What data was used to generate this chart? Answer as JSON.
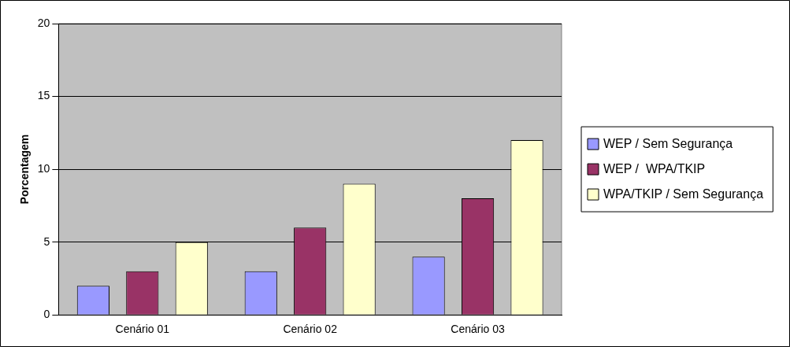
{
  "chart_data": {
    "type": "bar",
    "ylabel": "Porcentagem",
    "categories": [
      "Cenário 01",
      "Cenário 02",
      "Cenário 03"
    ],
    "series": [
      {
        "name": "WEP / Sem Segurança",
        "color": "#9999ff",
        "values": [
          2,
          3,
          4
        ]
      },
      {
        "name": "WEP /  WPA/TKIP",
        "color": "#993366",
        "values": [
          3,
          6,
          8
        ]
      },
      {
        "name": "WPA/TKIP / Sem Segurança",
        "color": "#ffffcc",
        "values": [
          5,
          9,
          12
        ]
      }
    ],
    "ylim": [
      0,
      20
    ],
    "yticks": [
      0,
      5,
      10,
      15,
      20
    ],
    "grid": "y",
    "legend": "right"
  }
}
